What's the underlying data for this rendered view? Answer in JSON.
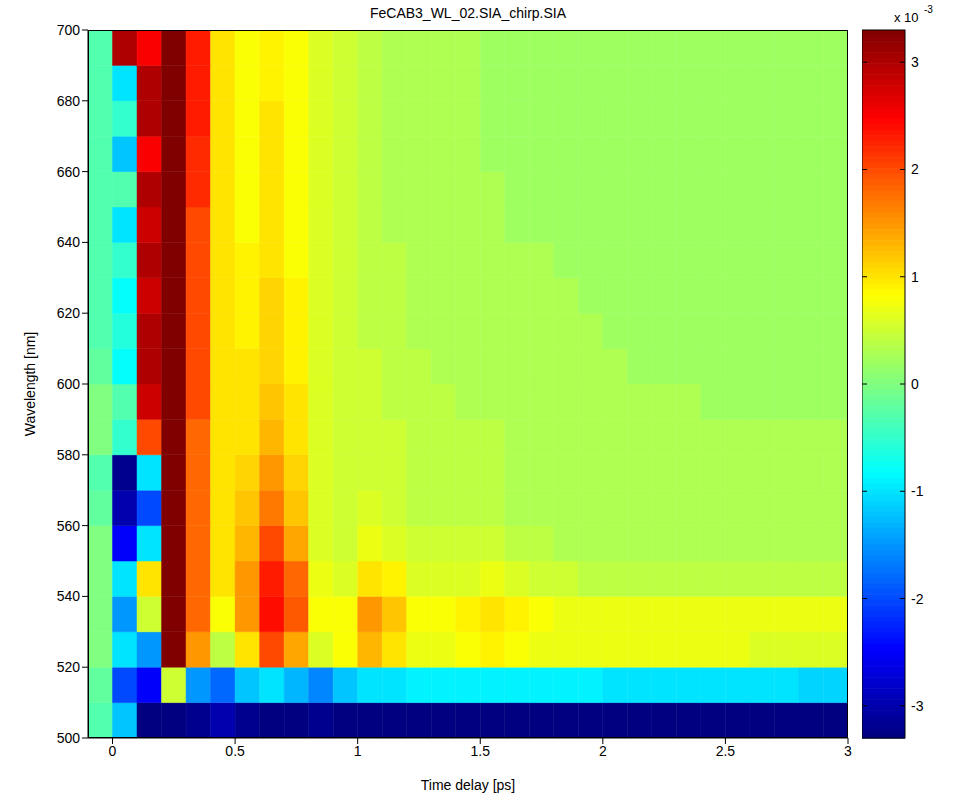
{
  "chart_data": {
    "type": "heatmap",
    "title": "FeCAB3_WL_02.SIA_chirp.SIA",
    "x_label": "Time delay [ps]",
    "y_label": "Wavelength [nm]",
    "xlim": [
      -0.1,
      3
    ],
    "xticks": [
      0,
      0.5,
      1,
      1.5,
      2,
      2.5,
      3
    ],
    "ylim": [
      500,
      700
    ],
    "yticks": [
      500,
      520,
      540,
      560,
      580,
      600,
      620,
      640,
      660,
      680,
      700
    ],
    "x": [
      -0.05,
      0.05,
      0.15,
      0.25,
      0.35,
      0.45,
      0.55,
      0.65,
      0.75,
      0.85,
      0.95,
      1.05,
      1.15,
      1.25,
      1.35,
      1.45,
      1.55,
      1.65,
      1.75,
      1.85,
      1.95,
      2.05,
      2.15,
      2.25,
      2.35,
      2.45,
      2.55,
      2.65,
      2.75,
      2.85,
      2.95
    ],
    "y": [
      505,
      515,
      525,
      535,
      545,
      555,
      565,
      575,
      585,
      595,
      605,
      615,
      625,
      635,
      645,
      655,
      665,
      675,
      685,
      695
    ],
    "cells": [
      [
        -0.3,
        -1.2,
        -3.3,
        -3.3,
        -3.2,
        -3.0,
        -3.2,
        -3.3,
        -3.3,
        -3.2,
        -3.3,
        -3.3,
        -3.3,
        -3.3,
        -3.3,
        -3.3,
        -3.3,
        -3.3,
        -3.3,
        -3.3,
        -3.3,
        -3.3,
        -3.3,
        -3.3,
        -3.3,
        -3.3,
        -3.3,
        -3.3,
        -3.3,
        -3.3,
        -3.3
      ],
      [
        -0.2,
        -2.0,
        -2.5,
        0.5,
        -1.5,
        -1.8,
        -1.2,
        -1.0,
        -1.3,
        -1.6,
        -1.2,
        -1.0,
        -1.0,
        -0.9,
        -0.9,
        -0.9,
        -0.9,
        -0.9,
        -0.9,
        -0.9,
        -0.9,
        -1.0,
        -1.0,
        -1.0,
        -1.0,
        -1.0,
        -1.0,
        -1.0,
        -1.0,
        -1.1,
        -1.1
      ],
      [
        0,
        -1.0,
        -1.5,
        3.3,
        1.5,
        0.4,
        1.0,
        2.0,
        1.4,
        0.6,
        0.8,
        1.3,
        1.0,
        0.7,
        0.7,
        0.8,
        0.9,
        0.8,
        0.7,
        0.7,
        0.7,
        0.7,
        0.7,
        0.7,
        0.7,
        0.7,
        0.7,
        0.6,
        0.6,
        0.6,
        0.6
      ],
      [
        0,
        -1.5,
        0.5,
        3.3,
        1.8,
        0.8,
        1.5,
        2.4,
        1.9,
        0.8,
        0.8,
        1.5,
        1.2,
        0.8,
        0.8,
        0.9,
        1.0,
        0.9,
        0.8,
        0.7,
        0.7,
        0.7,
        0.7,
        0.7,
        0.7,
        0.7,
        0.7,
        0.7,
        0.7,
        0.7,
        0.7
      ],
      [
        0,
        -1.0,
        1.0,
        3.3,
        1.8,
        1.0,
        1.5,
        2.3,
        1.8,
        0.7,
        0.6,
        1.0,
        0.9,
        0.6,
        0.6,
        0.6,
        0.7,
        0.6,
        0.5,
        0.5,
        0.4,
        0.4,
        0.4,
        0.4,
        0.4,
        0.4,
        0.4,
        0.4,
        0.4,
        0.4,
        0.4
      ],
      [
        0,
        -2.5,
        -1.0,
        3.3,
        1.8,
        1.0,
        1.3,
        2.0,
        1.4,
        0.6,
        0.5,
        0.7,
        0.6,
        0.5,
        0.5,
        0.5,
        0.5,
        0.4,
        0.4,
        0.3,
        0.3,
        0.3,
        0.3,
        0.3,
        0.3,
        0.3,
        0.3,
        0.3,
        0.3,
        0.3,
        0.3
      ],
      [
        -0.2,
        -3.0,
        -2.0,
        3.3,
        1.8,
        1.0,
        1.2,
        1.7,
        1.2,
        0.6,
        0.5,
        0.6,
        0.5,
        0.4,
        0.4,
        0.4,
        0.4,
        0.3,
        0.3,
        0.3,
        0.3,
        0.3,
        0.3,
        0.3,
        0.3,
        0.3,
        0.3,
        0.3,
        0.3,
        0.3,
        0.3
      ],
      [
        -0.3,
        -3.2,
        -1.0,
        3.3,
        1.8,
        1.0,
        1.1,
        1.5,
        1.1,
        0.6,
        0.5,
        0.5,
        0.5,
        0.4,
        0.4,
        0.4,
        0.4,
        0.3,
        0.3,
        0.3,
        0.3,
        0.3,
        0.3,
        0.3,
        0.3,
        0.3,
        0.3,
        0.3,
        0.3,
        0.3,
        0.3
      ],
      [
        0,
        -0.5,
        2.0,
        3.3,
        1.8,
        1.0,
        1.0,
        1.3,
        1.0,
        0.6,
        0.5,
        0.5,
        0.5,
        0.4,
        0.4,
        0.4,
        0.4,
        0.3,
        0.3,
        0.3,
        0.3,
        0.3,
        0.3,
        0.3,
        0.3,
        0.3,
        0.3,
        0.3,
        0.3,
        0.3,
        0.3
      ],
      [
        0,
        -0.3,
        2.8,
        3.3,
        2.0,
        1.0,
        1.0,
        1.2,
        1.0,
        0.6,
        0.5,
        0.5,
        0.4,
        0.4,
        0.4,
        0.3,
        0.3,
        0.3,
        0.3,
        0.3,
        0.3,
        0.3,
        0.3,
        0.3,
        0.3,
        0.2,
        0.2,
        0.2,
        0.2,
        0.2,
        0.2
      ],
      [
        -0.2,
        -0.8,
        3.0,
        3.3,
        2.0,
        1.0,
        1.0,
        1.1,
        0.9,
        0.6,
        0.5,
        0.5,
        0.4,
        0.4,
        0.3,
        0.3,
        0.3,
        0.3,
        0.3,
        0.3,
        0.3,
        0.3,
        0.2,
        0.2,
        0.2,
        0.2,
        0.2,
        0.2,
        0.2,
        0.2,
        0.2
      ],
      [
        -0.3,
        -0.6,
        3.0,
        3.3,
        2.0,
        1.0,
        0.9,
        1.1,
        0.9,
        0.6,
        0.5,
        0.4,
        0.4,
        0.3,
        0.3,
        0.3,
        0.3,
        0.3,
        0.3,
        0.3,
        0.3,
        0.2,
        0.2,
        0.2,
        0.2,
        0.2,
        0.2,
        0.2,
        0.2,
        0.2,
        0.2
      ],
      [
        -0.3,
        -0.8,
        2.8,
        3.3,
        2.0,
        1.0,
        0.9,
        1.1,
        0.9,
        0.6,
        0.5,
        0.4,
        0.4,
        0.3,
        0.3,
        0.3,
        0.3,
        0.3,
        0.3,
        0.3,
        0.2,
        0.2,
        0.2,
        0.2,
        0.2,
        0.2,
        0.2,
        0.2,
        0.2,
        0.2,
        0.2
      ],
      [
        -0.3,
        -0.5,
        3.0,
        3.3,
        2.0,
        1.0,
        0.9,
        1.0,
        0.8,
        0.6,
        0.5,
        0.4,
        0.4,
        0.3,
        0.3,
        0.3,
        0.3,
        0.3,
        0.3,
        0.2,
        0.2,
        0.2,
        0.2,
        0.2,
        0.2,
        0.2,
        0.2,
        0.2,
        0.2,
        0.2,
        0.2
      ],
      [
        -0.3,
        -1.0,
        2.8,
        3.3,
        2.0,
        1.0,
        0.8,
        1.0,
        0.8,
        0.6,
        0.5,
        0.4,
        0.3,
        0.3,
        0.3,
        0.3,
        0.3,
        0.2,
        0.2,
        0.2,
        0.2,
        0.2,
        0.2,
        0.2,
        0.2,
        0.2,
        0.2,
        0.2,
        0.2,
        0.2,
        0.2
      ],
      [
        -0.3,
        -0.3,
        3.0,
        3.3,
        2.2,
        1.0,
        0.8,
        1.0,
        0.8,
        0.6,
        0.5,
        0.4,
        0.3,
        0.3,
        0.3,
        0.3,
        0.3,
        0.2,
        0.2,
        0.2,
        0.2,
        0.2,
        0.2,
        0.2,
        0.2,
        0.2,
        0.2,
        0.2,
        0.2,
        0.2,
        0.2
      ],
      [
        -0.3,
        -1.2,
        2.5,
        3.3,
        2.2,
        1.0,
        0.8,
        1.0,
        0.8,
        0.6,
        0.5,
        0.4,
        0.3,
        0.3,
        0.3,
        0.3,
        0.2,
        0.2,
        0.2,
        0.2,
        0.2,
        0.2,
        0.2,
        0.2,
        0.2,
        0.2,
        0.2,
        0.2,
        0.2,
        0.2,
        0.2
      ],
      [
        -0.3,
        -0.5,
        3.0,
        3.3,
        2.3,
        1.0,
        0.8,
        1.0,
        0.8,
        0.6,
        0.5,
        0.4,
        0.3,
        0.3,
        0.3,
        0.3,
        0.2,
        0.2,
        0.2,
        0.2,
        0.2,
        0.2,
        0.2,
        0.2,
        0.2,
        0.2,
        0.2,
        0.2,
        0.2,
        0.2,
        0.2
      ],
      [
        -0.3,
        -1.0,
        3.0,
        3.3,
        2.3,
        1.0,
        0.8,
        0.9,
        0.8,
        0.6,
        0.5,
        0.4,
        0.3,
        0.3,
        0.3,
        0.3,
        0.2,
        0.2,
        0.2,
        0.2,
        0.2,
        0.2,
        0.2,
        0.2,
        0.2,
        0.2,
        0.2,
        0.2,
        0.2,
        0.2,
        0.2
      ],
      [
        -0.3,
        3.0,
        2.5,
        3.3,
        2.3,
        1.0,
        0.8,
        0.9,
        0.8,
        0.6,
        0.5,
        0.4,
        0.3,
        0.3,
        0.3,
        0.3,
        0.2,
        0.2,
        0.2,
        0.2,
        0.2,
        0.2,
        0.2,
        0.2,
        0.2,
        0.2,
        0.2,
        0.2,
        0.2,
        0.2,
        0.2
      ]
    ],
    "colorbar": {
      "range": [
        -3.3,
        3.3
      ],
      "ticks": [
        -3,
        -2,
        -1,
        0,
        1,
        2,
        3
      ],
      "label": "x 10",
      "exponent": "-3"
    }
  }
}
